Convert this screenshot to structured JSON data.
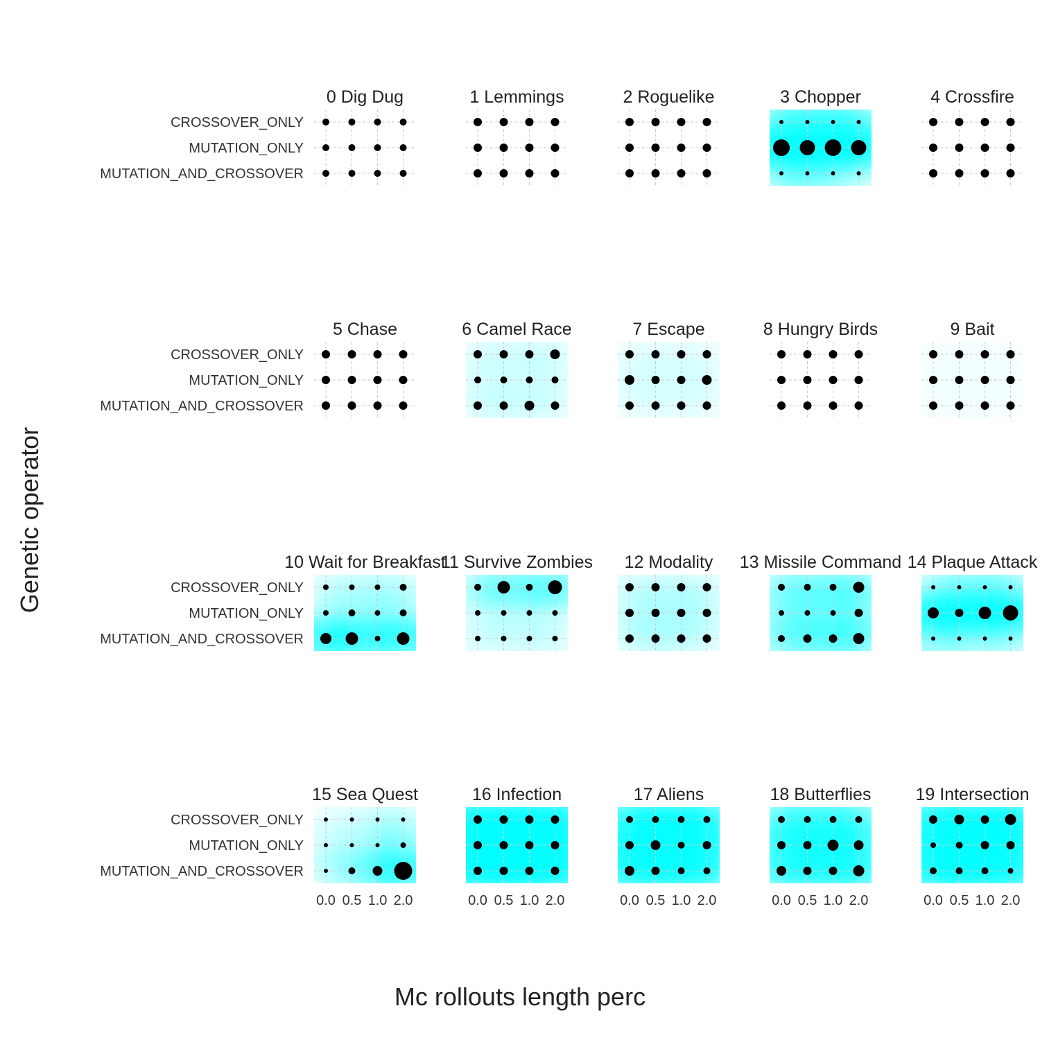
{
  "chart_data": {
    "type": "scatter",
    "xlabel": "Mc rollouts length perc",
    "ylabel": "Genetic operator",
    "x_categories": [
      "0.0",
      "0.5",
      "1.0",
      "2.0"
    ],
    "y_categories": [
      "CROSSOVER_ONLY",
      "MUTATION_ONLY",
      "MUTATION_AND_CROSSOVER"
    ],
    "fill_color": "#00ffff",
    "point_color": "#000000",
    "grid": true,
    "facets": [
      {
        "title": "0 Dig Dug",
        "sizes": [
          [
            5,
            5,
            5,
            5
          ],
          [
            5,
            5,
            5,
            5
          ],
          [
            5,
            5,
            5,
            5
          ]
        ],
        "shade": [
          [
            0,
            0,
            0,
            0
          ],
          [
            0,
            0,
            0,
            0
          ],
          [
            0,
            0,
            0,
            0
          ]
        ]
      },
      {
        "title": "1 Lemmings",
        "sizes": [
          [
            6,
            6,
            6,
            6
          ],
          [
            6,
            6,
            6,
            6
          ],
          [
            6,
            6,
            6,
            6
          ]
        ],
        "shade": [
          [
            0,
            0,
            0,
            0
          ],
          [
            0,
            0,
            0,
            0
          ],
          [
            0,
            0,
            0,
            0
          ]
        ]
      },
      {
        "title": "2 Roguelike",
        "sizes": [
          [
            6,
            6,
            6,
            6
          ],
          [
            6,
            6,
            6,
            6
          ],
          [
            6,
            6,
            6,
            6
          ]
        ],
        "shade": [
          [
            0,
            0,
            0,
            0
          ],
          [
            0,
            0,
            0,
            0
          ],
          [
            0,
            0,
            0,
            0
          ]
        ]
      },
      {
        "title": "3 Chopper",
        "sizes": [
          [
            3,
            3,
            3,
            3
          ],
          [
            12,
            11,
            12,
            11
          ],
          [
            3,
            3,
            3,
            3
          ]
        ],
        "shade": [
          [
            0.5,
            0.5,
            0.5,
            0.5
          ],
          [
            0.9,
            0.9,
            0.9,
            0.85
          ],
          [
            0.3,
            0.4,
            0.2,
            0.2
          ]
        ]
      },
      {
        "title": "4 Crossfire",
        "sizes": [
          [
            6,
            6,
            6,
            6
          ],
          [
            6,
            6,
            6,
            6
          ],
          [
            6,
            6,
            6,
            6
          ]
        ],
        "shade": [
          [
            0,
            0,
            0,
            0
          ],
          [
            0,
            0,
            0,
            0
          ],
          [
            0,
            0,
            0,
            0
          ]
        ]
      },
      {
        "title": "5 Chase",
        "sizes": [
          [
            6,
            6,
            6,
            6
          ],
          [
            6,
            6,
            6,
            6
          ],
          [
            6,
            6,
            6,
            6
          ]
        ],
        "shade": [
          [
            0,
            0,
            0,
            0
          ],
          [
            0,
            0,
            0,
            0
          ],
          [
            0,
            0,
            0,
            0
          ]
        ]
      },
      {
        "title": "6 Camel Race",
        "sizes": [
          [
            6,
            6,
            6,
            7
          ],
          [
            5,
            5,
            5,
            5
          ],
          [
            6,
            6,
            7,
            6
          ]
        ],
        "shade": [
          [
            0.08,
            0.08,
            0.08,
            0.1
          ],
          [
            0.08,
            0.05,
            0.05,
            0.08
          ],
          [
            0.1,
            0.08,
            0.1,
            0.08
          ]
        ]
      },
      {
        "title": "7 Escape",
        "sizes": [
          [
            6,
            6,
            6,
            6
          ],
          [
            7,
            6,
            6,
            7
          ],
          [
            6,
            6,
            6,
            6
          ]
        ],
        "shade": [
          [
            0.05,
            0.05,
            0.05,
            0.05
          ],
          [
            0.08,
            0.05,
            0.05,
            0.08
          ],
          [
            0.05,
            0.05,
            0.05,
            0.05
          ]
        ]
      },
      {
        "title": "8 Hungry Birds",
        "sizes": [
          [
            6,
            6,
            6,
            6
          ],
          [
            6,
            6,
            6,
            6
          ],
          [
            6,
            6,
            6,
            6
          ]
        ],
        "shade": [
          [
            0,
            0,
            0,
            0
          ],
          [
            0,
            0,
            0,
            0
          ],
          [
            0,
            0,
            0,
            0
          ]
        ]
      },
      {
        "title": "9 Bait",
        "sizes": [
          [
            6,
            6,
            6,
            6
          ],
          [
            6,
            6,
            6,
            6
          ],
          [
            6,
            6,
            6,
            6
          ]
        ],
        "shade": [
          [
            0.02,
            0.02,
            0.02,
            0.02
          ],
          [
            0.02,
            0.02,
            0.02,
            0.02
          ],
          [
            0.02,
            0.02,
            0.02,
            0.02
          ]
        ]
      },
      {
        "title": "10 Wait for Breakfast",
        "sizes": [
          [
            4,
            4,
            4,
            5
          ],
          [
            4,
            5,
            4,
            5
          ],
          [
            8,
            9,
            4,
            9
          ]
        ],
        "shade": [
          [
            0.1,
            0.12,
            0.12,
            0.15
          ],
          [
            0.15,
            0.15,
            0.15,
            0.2
          ],
          [
            0.7,
            0.6,
            0.3,
            0.7
          ]
        ]
      },
      {
        "title": "11 Survive Zombies",
        "sizes": [
          [
            5,
            9,
            5,
            10
          ],
          [
            4,
            4,
            4,
            4
          ],
          [
            4,
            4,
            4,
            4
          ]
        ],
        "shade": [
          [
            0.2,
            0.4,
            0.2,
            0.5
          ],
          [
            0.08,
            0.08,
            0.08,
            0.08
          ],
          [
            0.1,
            0.08,
            0.1,
            0.1
          ]
        ]
      },
      {
        "title": "12 Modality",
        "sizes": [
          [
            6,
            6,
            6,
            6
          ],
          [
            6,
            6,
            6,
            6
          ],
          [
            6,
            6,
            6,
            6
          ]
        ],
        "shade": [
          [
            0.1,
            0.1,
            0.1,
            0.1
          ],
          [
            0.12,
            0.12,
            0.12,
            0.12
          ],
          [
            0.1,
            0.15,
            0.1,
            0.1
          ]
        ]
      },
      {
        "title": "13 Missile Command",
        "sizes": [
          [
            5,
            5,
            5,
            8
          ],
          [
            4,
            4,
            4,
            6
          ],
          [
            5,
            6,
            6,
            8
          ]
        ],
        "shade": [
          [
            0.3,
            0.3,
            0.3,
            0.4
          ],
          [
            0.25,
            0.25,
            0.25,
            0.3
          ],
          [
            0.35,
            0.35,
            0.4,
            0.45
          ]
        ]
      },
      {
        "title": "14 Plaque Attack",
        "sizes": [
          [
            3,
            3,
            3,
            3
          ],
          [
            8,
            6,
            9,
            11
          ],
          [
            3,
            3,
            3,
            3
          ]
        ],
        "shade": [
          [
            0.2,
            0.3,
            0.3,
            0.3
          ],
          [
            0.8,
            0.7,
            0.75,
            0.8
          ],
          [
            0.35,
            0.2,
            0.2,
            0.25
          ]
        ]
      },
      {
        "title": "15 Sea Quest",
        "sizes": [
          [
            3,
            3,
            3,
            3
          ],
          [
            3,
            3,
            3,
            4
          ],
          [
            3,
            5,
            7,
            13
          ]
        ],
        "shade": [
          [
            0.05,
            0.05,
            0.1,
            0.15
          ],
          [
            0.1,
            0.1,
            0.15,
            0.3
          ],
          [
            0.15,
            0.2,
            0.4,
            0.7
          ]
        ]
      },
      {
        "title": "16 Infection",
        "sizes": [
          [
            6,
            6,
            6,
            6
          ],
          [
            6,
            6,
            6,
            6
          ],
          [
            6,
            6,
            6,
            6
          ]
        ],
        "shade": [
          [
            0.9,
            0.9,
            0.9,
            0.9
          ],
          [
            0.95,
            0.9,
            0.9,
            0.9
          ],
          [
            0.9,
            0.9,
            0.9,
            0.9
          ]
        ]
      },
      {
        "title": "17 Aliens",
        "sizes": [
          [
            5,
            5,
            5,
            5
          ],
          [
            6,
            7,
            5,
            6
          ],
          [
            7,
            6,
            5,
            5
          ]
        ],
        "shade": [
          [
            0.7,
            0.8,
            0.8,
            0.7
          ],
          [
            0.8,
            0.8,
            0.75,
            0.7
          ],
          [
            0.75,
            0.7,
            0.75,
            0.7
          ]
        ]
      },
      {
        "title": "18 Butterflies",
        "sizes": [
          [
            5,
            5,
            5,
            5
          ],
          [
            6,
            6,
            8,
            7
          ],
          [
            7,
            6,
            6,
            8
          ]
        ],
        "shade": [
          [
            0.5,
            0.5,
            0.5,
            0.5
          ],
          [
            0.6,
            0.6,
            0.65,
            0.6
          ],
          [
            0.6,
            0.55,
            0.6,
            0.65
          ]
        ]
      },
      {
        "title": "19 Intersection",
        "sizes": [
          [
            6,
            7,
            6,
            8
          ],
          [
            4,
            5,
            6,
            6
          ],
          [
            5,
            5,
            5,
            4
          ]
        ],
        "shade": [
          [
            0.8,
            0.8,
            0.8,
            0.85
          ],
          [
            0.8,
            0.8,
            0.8,
            0.85
          ],
          [
            0.8,
            0.8,
            0.8,
            0.8
          ]
        ]
      }
    ]
  }
}
